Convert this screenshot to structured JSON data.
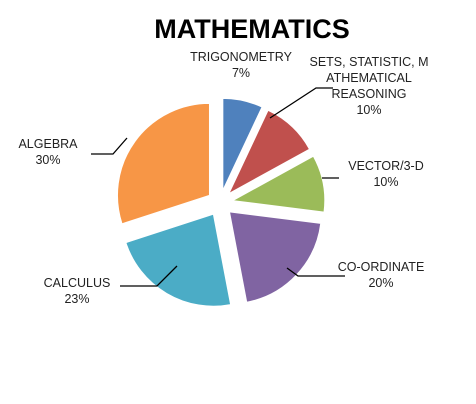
{
  "chart_data": {
    "type": "pie",
    "title": "MATHEMATICS",
    "exploded": true,
    "slices": [
      {
        "name": "TRIGONOMETRY",
        "label_lines": [
          "TRIGONOMETRY",
          "7%"
        ],
        "value": 7,
        "color": "#4F81BD"
      },
      {
        "name": "SETS, STATISTIC, MATHEMATICAL REASONING",
        "label_lines": [
          "SETS, STATISTIC, M",
          "ATHEMATICAL",
          "REASONING",
          "10%"
        ],
        "value": 10,
        "color": "#C0504D"
      },
      {
        "name": "VECTOR/3-D",
        "label_lines": [
          "VECTOR/3-D",
          "10%"
        ],
        "value": 10,
        "color": "#9BBB59"
      },
      {
        "name": "CO-ORDINATE",
        "label_lines": [
          "CO-ORDINATE",
          "20%"
        ],
        "value": 20,
        "color": "#8064A2"
      },
      {
        "name": "CALCULUS",
        "label_lines": [
          "CALCULUS",
          "23%"
        ],
        "value": 23,
        "color": "#4BACC6"
      },
      {
        "name": "ALGEBRA",
        "label_lines": [
          "ALGEBRA",
          "30%"
        ],
        "value": 30,
        "color": "#F79646"
      }
    ]
  }
}
